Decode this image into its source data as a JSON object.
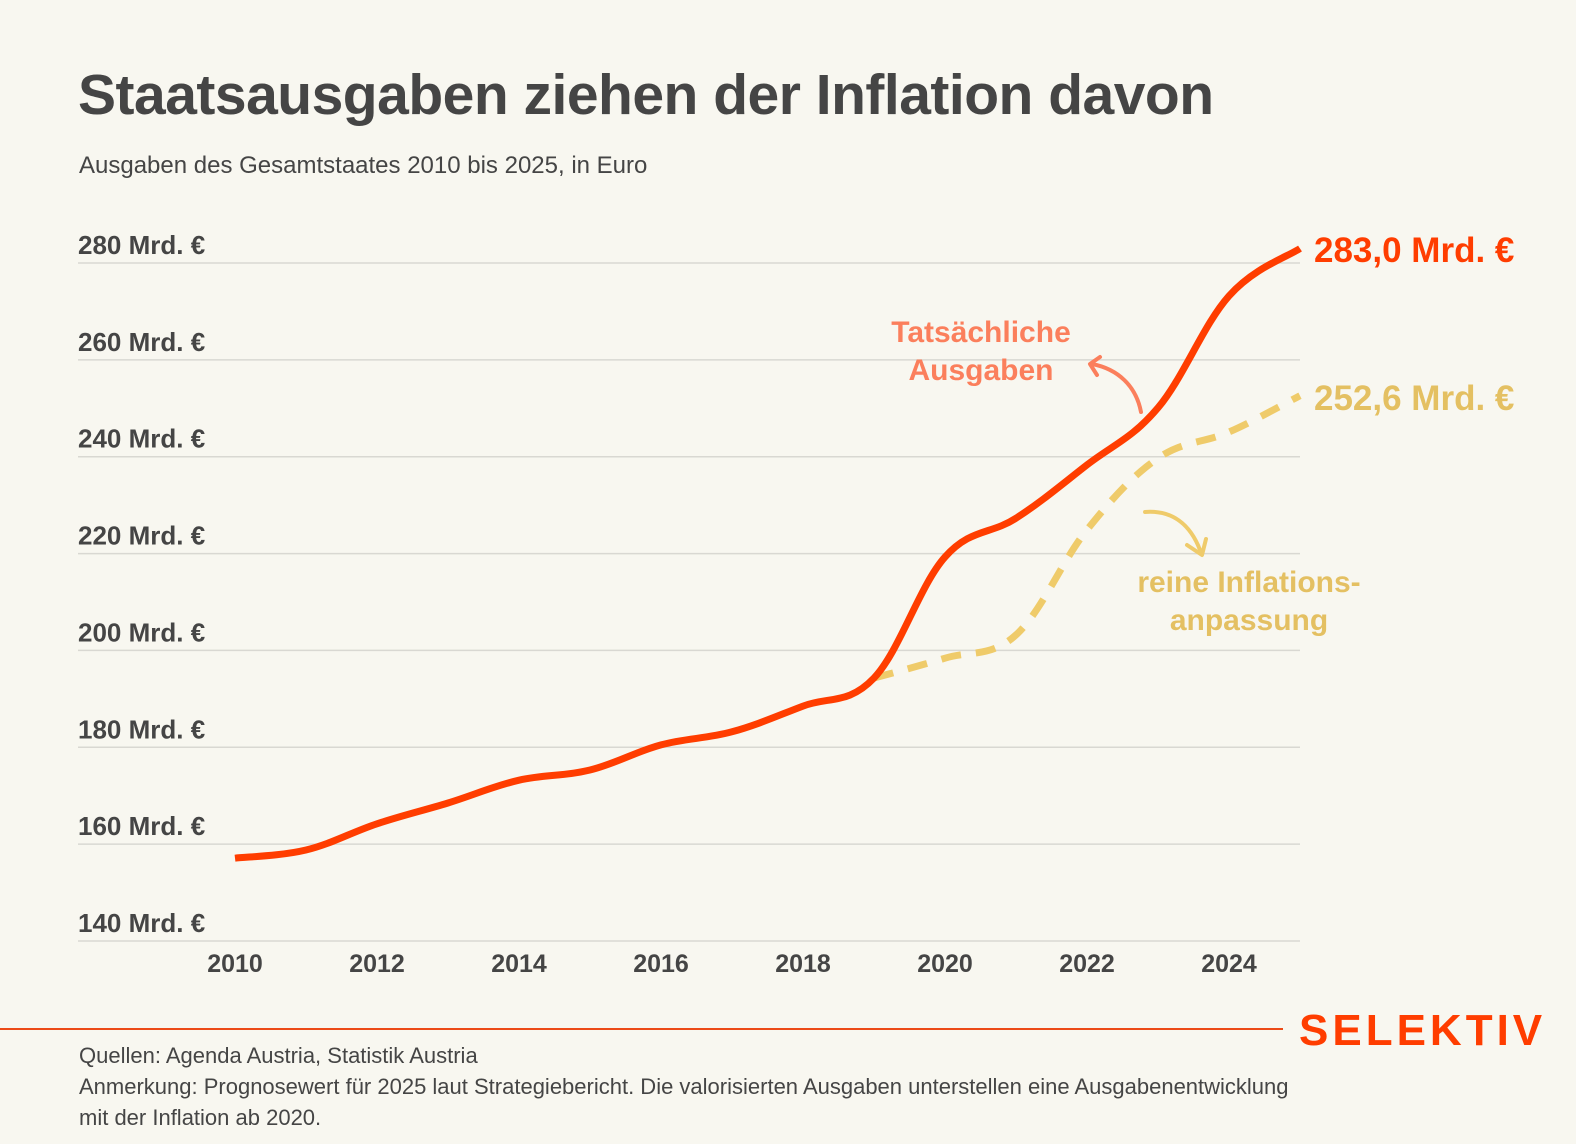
{
  "header": {
    "title": "Staatsausgaben ziehen der Inflation davon",
    "subtitle": "Ausgaben des Gesamtstaates 2010 bis 2025, in Euro"
  },
  "footer": {
    "brand": "SELEKTIV",
    "sources": "Quellen: Agenda Austria, Statistik Austria",
    "note_line1": "Anmerkung: Prognosewert für 2025 laut Strategiebericht. Die valorisierten Ausgaben unterstellen eine Ausgabenentwicklung",
    "note_line2": "mit der Inflation ab 2020."
  },
  "colors": {
    "actual": "#ff3d00",
    "actual_annotation": "#fb7f5c",
    "inflation": "#efcb6a",
    "inflation_label": "#e4c062",
    "text": "#454545",
    "grid": "#d9d8d2",
    "background": "#f8f7f0"
  },
  "chart_data": {
    "type": "line",
    "title": "Staatsausgaben ziehen der Inflation davon",
    "subtitle": "Ausgaben des Gesamtstaates 2010 bis 2025, in Euro",
    "xlabel": "",
    "ylabel": "",
    "x": [
      2010,
      2011,
      2012,
      2013,
      2014,
      2015,
      2016,
      2017,
      2018,
      2019,
      2020,
      2021,
      2022,
      2023,
      2024,
      2025
    ],
    "xlim": [
      2010,
      2025
    ],
    "ylim": [
      140,
      280
    ],
    "grid": true,
    "x_ticks": [
      2010,
      2012,
      2014,
      2016,
      2018,
      2020,
      2022,
      2024
    ],
    "x_tick_labels": [
      "2010",
      "2012",
      "2014",
      "2016",
      "2018",
      "2020",
      "2022",
      "2024"
    ],
    "y_ticks": [
      140,
      160,
      180,
      200,
      220,
      240,
      260,
      280
    ],
    "y_tick_labels": [
      "140 Mrd. €",
      "160 Mrd. €",
      "180 Mrd. €",
      "200 Mrd. €",
      "220 Mrd. €",
      "240 Mrd. €",
      "260 Mrd. €",
      "280 Mrd. €"
    ],
    "series": [
      {
        "name": "Tatsächliche Ausgaben",
        "style": "solid",
        "x": [
          2010,
          2011,
          2012,
          2013,
          2014,
          2015,
          2016,
          2017,
          2018,
          2019,
          2020,
          2021,
          2022,
          2023,
          2024,
          2025
        ],
        "values": [
          157.1,
          158.8,
          164.2,
          168.5,
          173.2,
          175.3,
          180.5,
          183.2,
          188.5,
          194.3,
          219.3,
          227.3,
          238.3,
          250.1,
          273.2,
          283.0
        ],
        "end_label": "283,0 Mrd. €"
      },
      {
        "name": "reine Inflationsanpassung",
        "style": "dashed",
        "x": [
          2019,
          2020,
          2021,
          2022,
          2023,
          2024,
          2025
        ],
        "values": [
          194.3,
          198.4,
          203.2,
          224.9,
          239.7,
          245.1,
          252.6
        ],
        "end_label": "252,6 Mrd. €"
      }
    ],
    "annotations": [
      {
        "text_line1": "Tatsächliche",
        "text_line2": "Ausgaben",
        "series": "Tatsächliche Ausgaben"
      },
      {
        "text_line1": "reine Inflations-",
        "text_line2": "anpassung",
        "series": "reine Inflationsanpassung"
      }
    ]
  }
}
